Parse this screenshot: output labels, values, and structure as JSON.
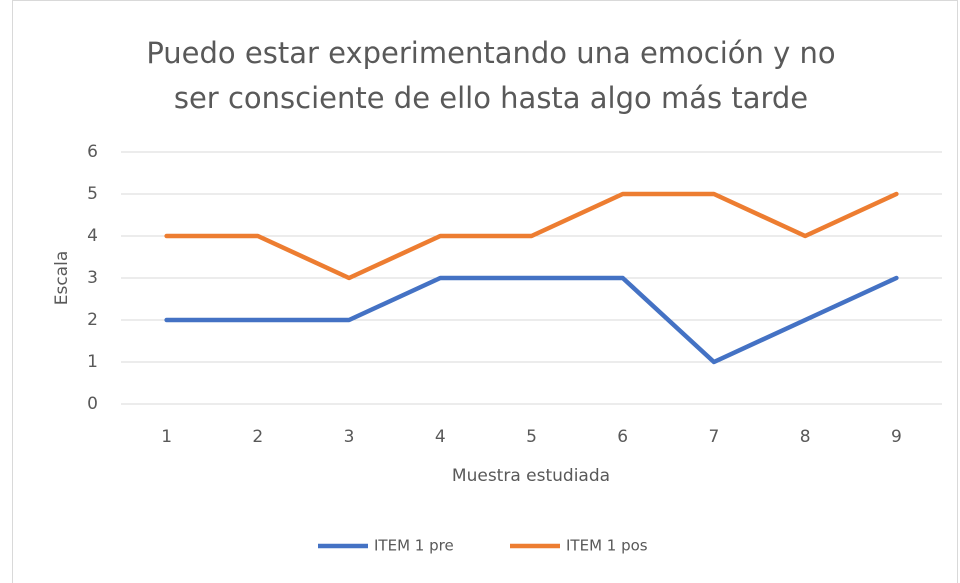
{
  "chart_data": {
    "type": "line",
    "title": [
      "Puedo estar experimentando una emoción y no",
      "ser consciente de ello hasta algo más tarde"
    ],
    "x_label": "Muestra estudiada",
    "y_label": "Escala",
    "categories": [
      1,
      2,
      3,
      4,
      5,
      6,
      7,
      8,
      9
    ],
    "series": [
      {
        "name": "ITEM 1 pre",
        "color": "#4472c4",
        "values": [
          2,
          2,
          2,
          3,
          3,
          3,
          1,
          2,
          3
        ]
      },
      {
        "name": "ITEM 1 pos",
        "color": "#ed7d31",
        "values": [
          4,
          4,
          3,
          4,
          4,
          5,
          5,
          4,
          5
        ]
      }
    ],
    "ylim": [
      0,
      6
    ],
    "yticks": [
      0,
      1,
      2,
      3,
      4,
      5,
      6
    ],
    "grid": true,
    "legend": "bottom"
  }
}
